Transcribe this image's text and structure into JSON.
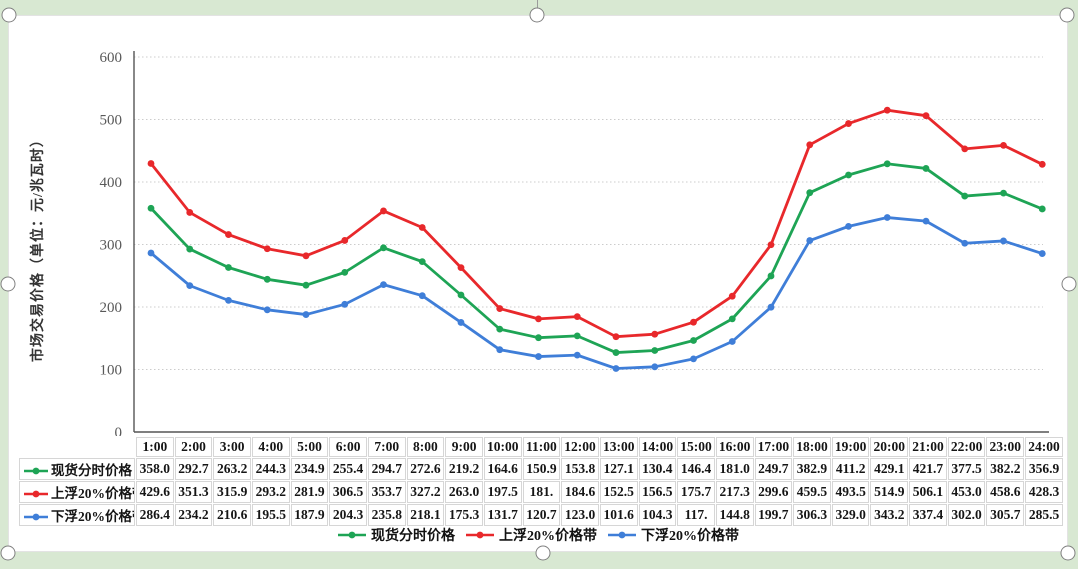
{
  "page": {
    "background_color": "#d8e8d2",
    "panel_color": "#ffffff"
  },
  "chart_data": {
    "type": "line",
    "title": "",
    "xlabel": "",
    "ylabel": "市场交易价格（单位：元/兆瓦时）",
    "ylim": [
      0,
      600
    ],
    "yticks": [
      0,
      100,
      200,
      300,
      400,
      500,
      600
    ],
    "grid": true,
    "legend_position": "bottom",
    "categories": [
      "1:00",
      "2:00",
      "3:00",
      "4:00",
      "5:00",
      "6:00",
      "7:00",
      "8:00",
      "9:00",
      "10:00",
      "11:00",
      "12:00",
      "13:00",
      "14:00",
      "15:00",
      "16:00",
      "17:00",
      "18:00",
      "19:00",
      "20:00",
      "21:00",
      "22:00",
      "23:00",
      "24:00"
    ],
    "series": [
      {
        "name": "现货分时价格",
        "color": "#1ea455",
        "values": [
          358.0,
          292.7,
          263.2,
          244.3,
          234.9,
          255.4,
          294.7,
          272.6,
          219.2,
          164.6,
          150.9,
          153.8,
          127.1,
          130.4,
          146.4,
          181.0,
          249.7,
          382.9,
          411.2,
          429.1,
          421.7,
          377.5,
          382.2,
          356.9
        ],
        "display": [
          "358.0",
          "292.7",
          "263.2",
          "244.3",
          "234.9",
          "255.4",
          "294.7",
          "272.6",
          "219.2",
          "164.6",
          "150.9",
          "153.8",
          "127.1",
          "130.4",
          "146.4",
          "181.0",
          "249.7",
          "382.9",
          "411.2",
          "429.1",
          "421.7",
          "377.5",
          "382.2",
          "356.9"
        ]
      },
      {
        "name": "上浮20%价格带",
        "color": "#e8282b",
        "values": [
          429.6,
          351.3,
          315.9,
          293.2,
          281.9,
          306.5,
          353.7,
          327.2,
          263.0,
          197.5,
          181.0,
          184.6,
          152.5,
          156.5,
          175.7,
          217.3,
          299.6,
          459.5,
          493.5,
          514.9,
          506.1,
          453.0,
          458.6,
          428.3
        ],
        "display": [
          "429.6",
          "351.3",
          "315.9",
          "293.2",
          "281.9",
          "306.5",
          "353.7",
          "327.2",
          "263.0",
          "197.5",
          "181.",
          "184.6",
          "152.5",
          "156.5",
          "175.7",
          "217.3",
          "299.6",
          "459.5",
          "493.5",
          "514.9",
          "506.1",
          "453.0",
          "458.6",
          "428.3"
        ]
      },
      {
        "name": "下浮20%价格带",
        "color": "#3f7ed8",
        "values": [
          286.4,
          234.2,
          210.6,
          195.5,
          187.9,
          204.3,
          235.8,
          218.1,
          175.3,
          131.7,
          120.7,
          123.0,
          101.6,
          104.3,
          117.0,
          144.8,
          199.7,
          306.3,
          329.0,
          343.2,
          337.4,
          302.0,
          305.7,
          285.5
        ],
        "display": [
          "286.4",
          "234.2",
          "210.6",
          "195.5",
          "187.9",
          "204.3",
          "235.8",
          "218.1",
          "175.3",
          "131.7",
          "120.7",
          "123.0",
          "101.6",
          "104.3",
          "117.",
          "144.8",
          "199.7",
          "306.3",
          "329.0",
          "343.2",
          "337.4",
          "302.0",
          "305.7",
          "285.5"
        ]
      }
    ]
  }
}
